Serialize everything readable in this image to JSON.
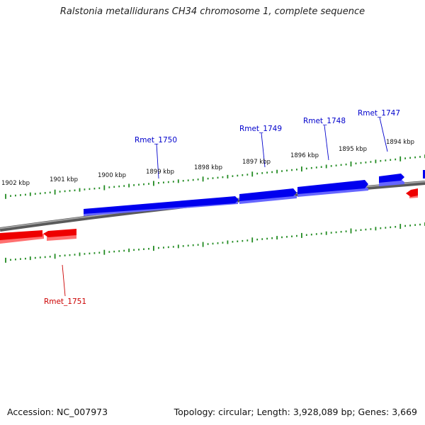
{
  "title": "Ralstonia metallidurans CH34 chromosome 1, complete sequence",
  "footer": {
    "accession": "Accession: NC_007973",
    "summary": "Topology: circular; Length: 3,928,089 bp; Genes: 3,669"
  },
  "scale": {
    "unit": "kbp",
    "tick_labels": [
      "1902 kbp",
      "1901 kbp",
      "1900 kbp",
      "1899 kbp",
      "1898 kbp",
      "1897 kbp",
      "1896 kbp",
      "1895 kbp",
      "1894 kbp"
    ]
  },
  "genes": [
    {
      "name": "Rmet_1750",
      "strand": "forward",
      "color": "#0000cc"
    },
    {
      "name": "Rmet_1749",
      "strand": "forward",
      "color": "#0000cc"
    },
    {
      "name": "Rmet_1748",
      "strand": "forward",
      "color": "#0000cc"
    },
    {
      "name": "Rmet_1747",
      "strand": "forward",
      "color": "#0000cc"
    },
    {
      "name": "Rmet_1751",
      "strand": "reverse",
      "color": "#cc0000"
    }
  ],
  "colors": {
    "forward_gene": "#0000ee",
    "reverse_gene": "#ee0000",
    "backbone": "#8a8a8a",
    "ticks": "#228b22"
  }
}
